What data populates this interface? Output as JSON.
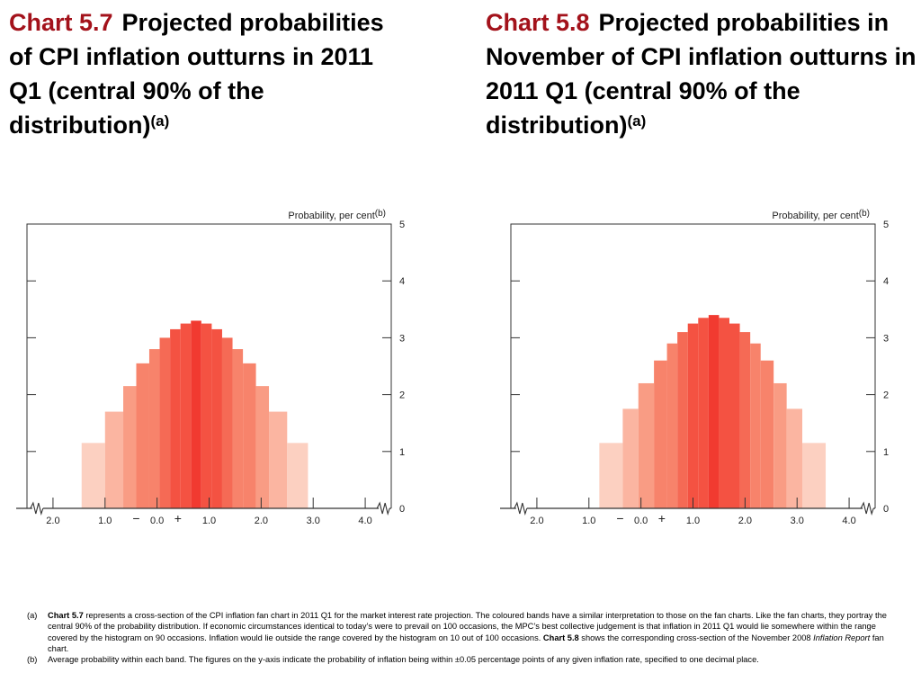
{
  "headings": [
    {
      "number": "Chart 5.7",
      "text": "Projected probabilities of CPI inflation outturns in 2011 Q1 (central 90% of the distribution)",
      "marker": "(a)"
    },
    {
      "number": "Chart 5.8",
      "text": "Projected probabilities in November of CPI inflation outturns in 2011 Q1 (central 90% of the distribution)",
      "marker": "(a)"
    }
  ],
  "colors": {
    "title_number": "#a3121b",
    "bands": [
      "#fcd0c1",
      "#fbb5a1",
      "#f99c84",
      "#f7836b",
      "#f56a55",
      "#f45242",
      "#f13a30"
    ]
  },
  "chart_data": [
    {
      "type": "bar",
      "ylabel": "Probability, per cent",
      "ylabel_marker": "(b)",
      "ylim": [
        0,
        5
      ],
      "yticks": [
        "0",
        "1",
        "2",
        "3",
        "4",
        "5"
      ],
      "xlim": [
        -2.5,
        4.5
      ],
      "x_tick_labels": [
        {
          "value": -2.0,
          "label": "2.0"
        },
        {
          "value": -1.0,
          "label": "1.0"
        },
        {
          "value": 0.0,
          "label": "0.0"
        },
        {
          "value": 1.0,
          "label": "1.0"
        },
        {
          "value": 2.0,
          "label": "2.0"
        },
        {
          "value": 3.0,
          "label": "3.0"
        },
        {
          "value": 4.0,
          "label": "4.0"
        }
      ],
      "sign_labels": {
        "minus": "−",
        "plus": "+"
      },
      "axis_break": true,
      "bars": [
        {
          "from": -1.45,
          "to": -1.0,
          "value": 1.15,
          "band": 0
        },
        {
          "from": -1.0,
          "to": -0.65,
          "value": 1.7,
          "band": 1
        },
        {
          "from": -0.65,
          "to": -0.4,
          "value": 2.15,
          "band": 2
        },
        {
          "from": -0.4,
          "to": -0.15,
          "value": 2.55,
          "band": 3
        },
        {
          "from": -0.15,
          "to": 0.05,
          "value": 2.8,
          "band": 3
        },
        {
          "from": 0.05,
          "to": 0.25,
          "value": 3.0,
          "band": 4
        },
        {
          "from": 0.25,
          "to": 0.45,
          "value": 3.15,
          "band": 5
        },
        {
          "from": 0.45,
          "to": 0.65,
          "value": 3.25,
          "band": 5
        },
        {
          "from": 0.65,
          "to": 0.85,
          "value": 3.3,
          "band": 6
        },
        {
          "from": 0.85,
          "to": 1.05,
          "value": 3.25,
          "band": 5
        },
        {
          "from": 1.05,
          "to": 1.25,
          "value": 3.15,
          "band": 5
        },
        {
          "from": 1.25,
          "to": 1.45,
          "value": 3.0,
          "band": 4
        },
        {
          "from": 1.45,
          "to": 1.65,
          "value": 2.8,
          "band": 3
        },
        {
          "from": 1.65,
          "to": 1.9,
          "value": 2.55,
          "band": 3
        },
        {
          "from": 1.9,
          "to": 2.15,
          "value": 2.15,
          "band": 2
        },
        {
          "from": 2.15,
          "to": 2.5,
          "value": 1.7,
          "band": 1
        },
        {
          "from": 2.5,
          "to": 2.9,
          "value": 1.15,
          "band": 0
        }
      ]
    },
    {
      "type": "bar",
      "ylabel": "Probability, per cent",
      "ylabel_marker": "(b)",
      "ylim": [
        0,
        5
      ],
      "yticks": [
        "0",
        "1",
        "2",
        "3",
        "4",
        "5"
      ],
      "xlim": [
        -2.5,
        4.5
      ],
      "x_tick_labels": [
        {
          "value": -2.0,
          "label": "2.0"
        },
        {
          "value": -1.0,
          "label": "1.0"
        },
        {
          "value": 0.0,
          "label": "0.0"
        },
        {
          "value": 1.0,
          "label": "1.0"
        },
        {
          "value": 2.0,
          "label": "2.0"
        },
        {
          "value": 3.0,
          "label": "3.0"
        },
        {
          "value": 4.0,
          "label": "4.0"
        }
      ],
      "sign_labels": {
        "minus": "−",
        "plus": "+"
      },
      "axis_break": true,
      "bars": [
        {
          "from": -0.8,
          "to": -0.35,
          "value": 1.15,
          "band": 0
        },
        {
          "from": -0.35,
          "to": -0.05,
          "value": 1.75,
          "band": 1
        },
        {
          "from": -0.05,
          "to": 0.25,
          "value": 2.2,
          "band": 2
        },
        {
          "from": 0.25,
          "to": 0.5,
          "value": 2.6,
          "band": 3
        },
        {
          "from": 0.5,
          "to": 0.7,
          "value": 2.9,
          "band": 3
        },
        {
          "from": 0.7,
          "to": 0.9,
          "value": 3.1,
          "band": 4
        },
        {
          "from": 0.9,
          "to": 1.1,
          "value": 3.25,
          "band": 5
        },
        {
          "from": 1.1,
          "to": 1.3,
          "value": 3.35,
          "band": 5
        },
        {
          "from": 1.3,
          "to": 1.5,
          "value": 3.4,
          "band": 6
        },
        {
          "from": 1.5,
          "to": 1.7,
          "value": 3.35,
          "band": 5
        },
        {
          "from": 1.7,
          "to": 1.9,
          "value": 3.25,
          "band": 5
        },
        {
          "from": 1.9,
          "to": 2.1,
          "value": 3.1,
          "band": 4
        },
        {
          "from": 2.1,
          "to": 2.3,
          "value": 2.9,
          "band": 3
        },
        {
          "from": 2.3,
          "to": 2.55,
          "value": 2.6,
          "band": 3
        },
        {
          "from": 2.55,
          "to": 2.8,
          "value": 2.2,
          "band": 2
        },
        {
          "from": 2.8,
          "to": 3.1,
          "value": 1.75,
          "band": 1
        },
        {
          "from": 3.1,
          "to": 3.55,
          "value": 1.15,
          "band": 0
        }
      ]
    }
  ],
  "notes": [
    {
      "marker": "(a)",
      "parts": [
        {
          "text": "Chart 5.7",
          "style": "b"
        },
        {
          "text": " represents a cross-section of the CPI inflation fan chart in 2011 Q1 for the market interest rate projection.  The coloured bands have a similar interpretation to those on the fan charts.  Like the fan charts, they portray the central 90% of the probability distribution.  If economic circumstances identical to today’s were to prevail on 100 occasions, the MPC’s best collective judgement is that inflation in 2011 Q1 would lie somewhere within the range covered by the histogram on 90 occasions.  Inflation would lie outside the range covered by the histogram on 10 out of 100 occasions.  ",
          "style": ""
        },
        {
          "text": "Chart 5.8",
          "style": "b"
        },
        {
          "text": " shows the corresponding cross-section of the November 2008 ",
          "style": ""
        },
        {
          "text": "Inflation Report",
          "style": "i"
        },
        {
          "text": " fan chart.",
          "style": ""
        }
      ]
    },
    {
      "marker": "(b)",
      "parts": [
        {
          "text": "Average probability within each band.  The figures on the y-axis indicate the probability of inflation being within ±0.05 percentage points of any given inflation rate, specified to one decimal place.",
          "style": ""
        }
      ]
    }
  ]
}
